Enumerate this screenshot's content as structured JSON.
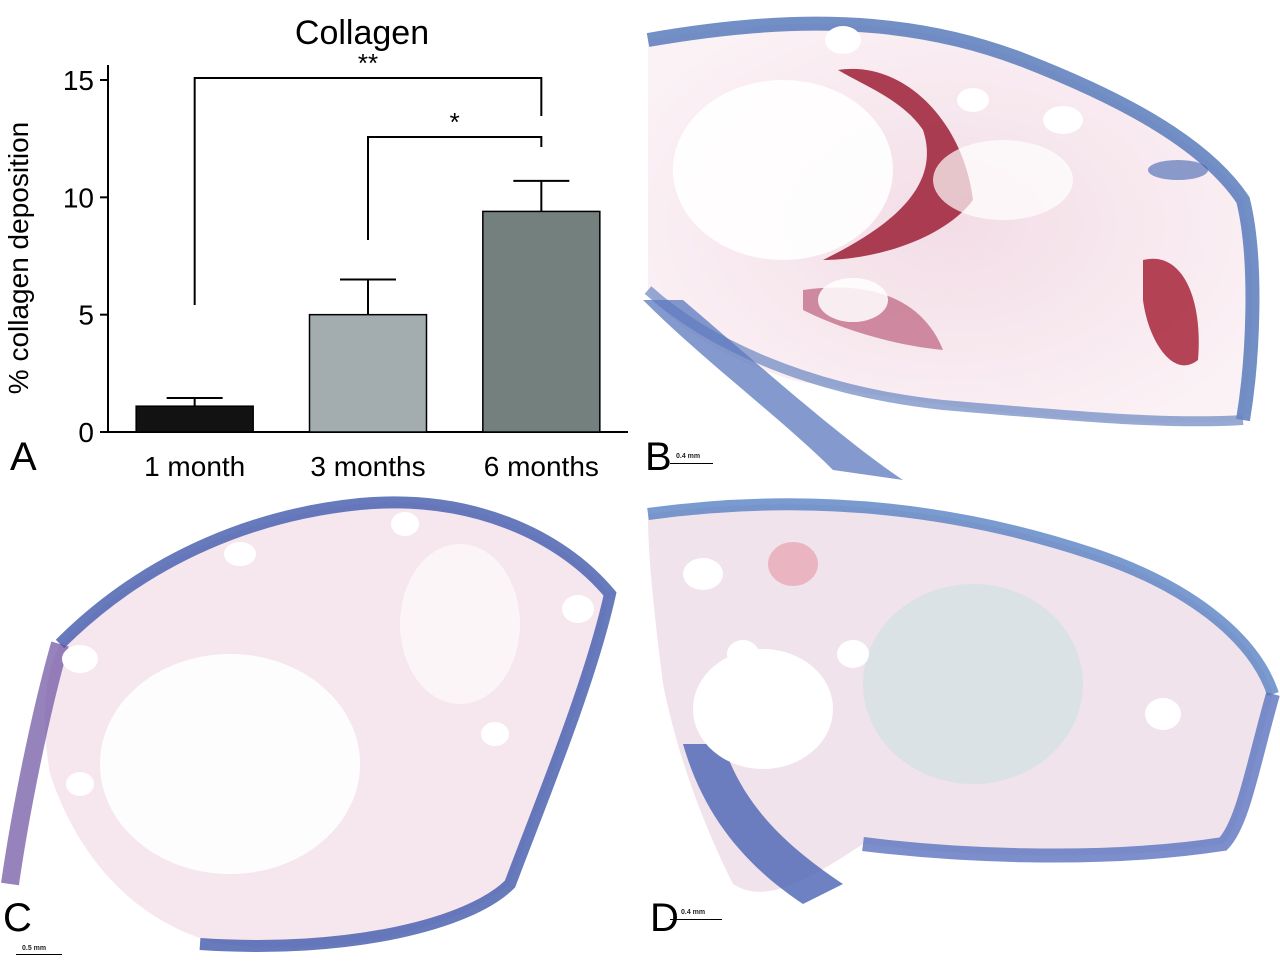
{
  "figure": {
    "panel_labels": {
      "a": "A",
      "b": "B",
      "c": "C",
      "d": "D"
    },
    "scale_bars": {
      "b": "0.4 mm",
      "c": "0.5 mm",
      "d": "0.4 mm"
    }
  },
  "chart_data": {
    "type": "bar",
    "title": "Collagen",
    "xlabel": "",
    "ylabel": "% collagen deposition",
    "categories": [
      "1 month",
      "3 months",
      "6 months"
    ],
    "values": [
      1.1,
      5.0,
      9.4
    ],
    "error_upper": [
      1.45,
      6.5,
      10.7
    ],
    "bar_colors": [
      "#121212",
      "#a3adb0",
      "#73807e"
    ],
    "ylim": [
      0,
      15
    ],
    "yticks": [
      0,
      5,
      10,
      15
    ],
    "grid": false,
    "significance": [
      {
        "from": "1 month",
        "to": "6 months",
        "label": "**"
      },
      {
        "from": "3 months",
        "to": "6 months",
        "label": "*"
      }
    ]
  }
}
